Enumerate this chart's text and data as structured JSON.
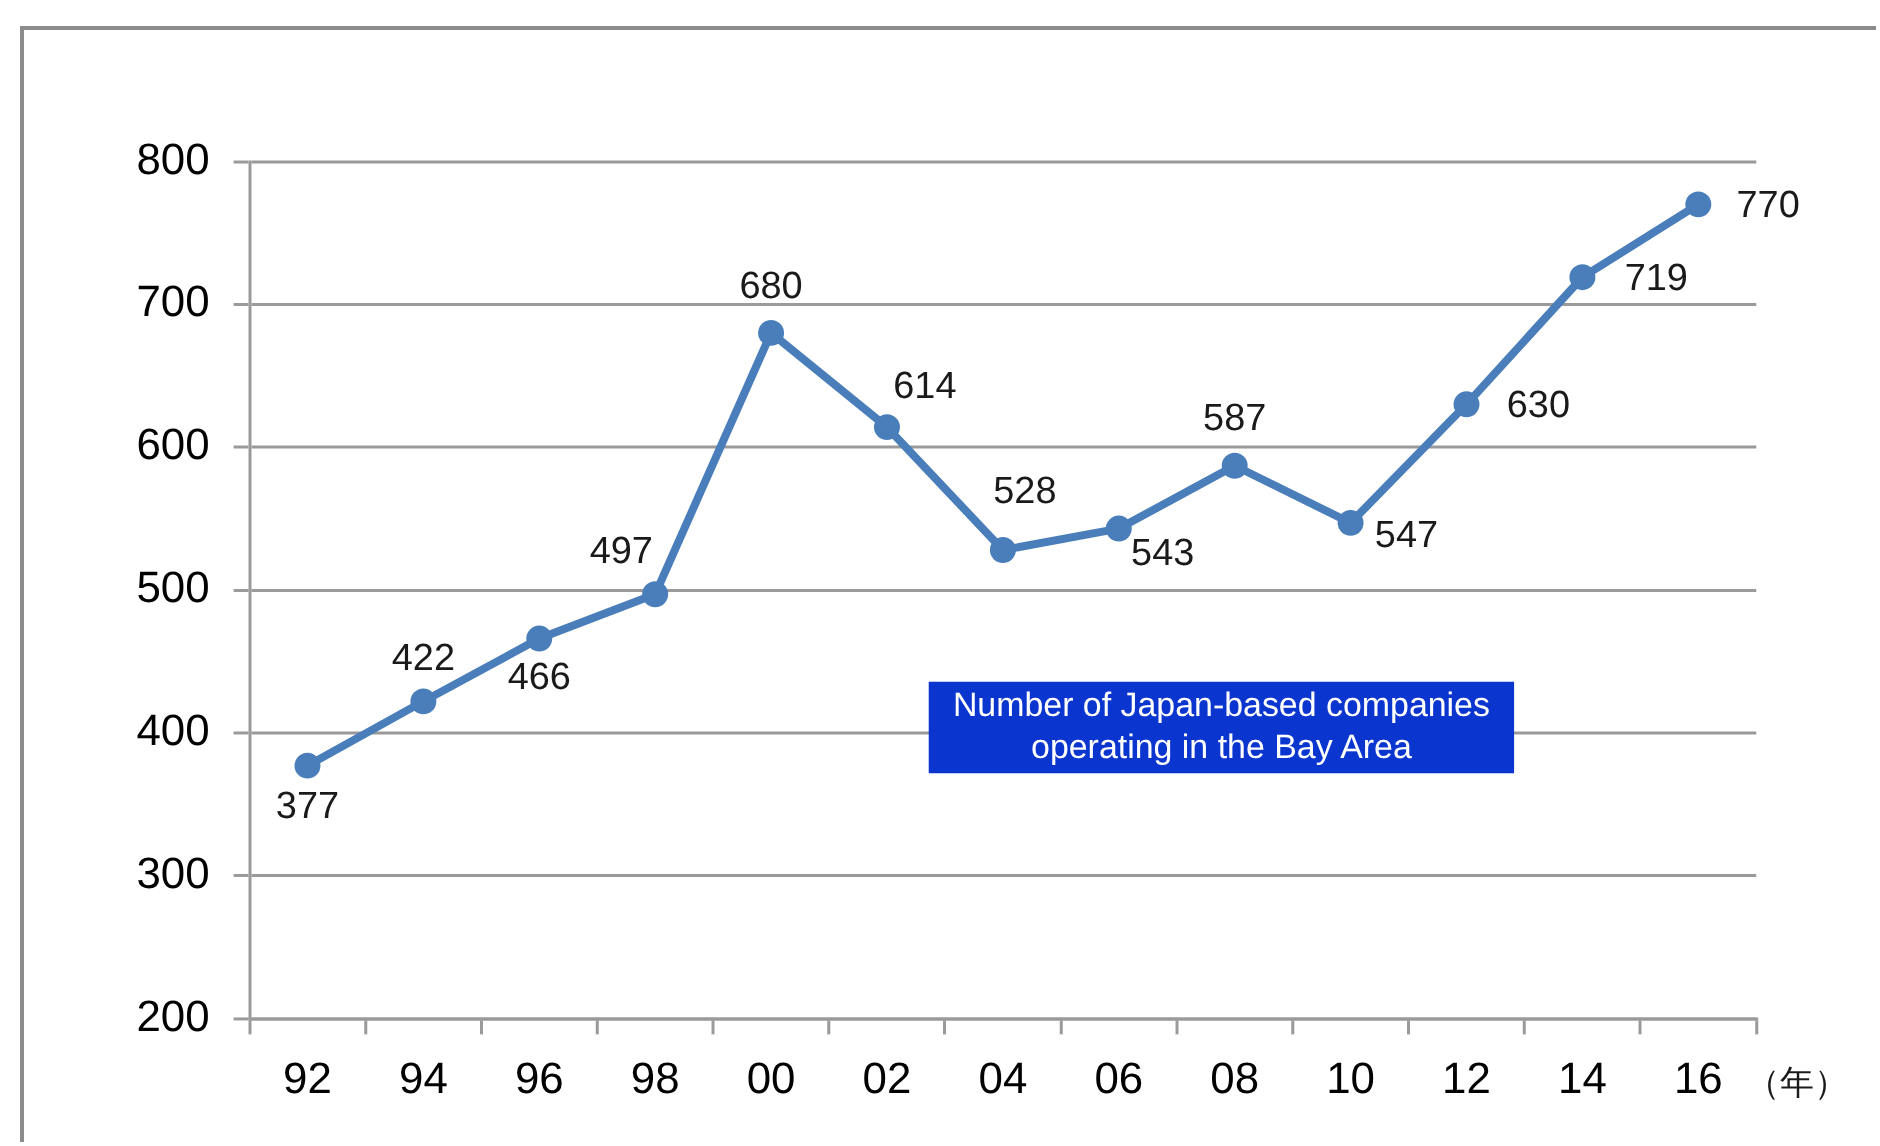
{
  "chart_data": {
    "type": "line",
    "xlabel": "（年）",
    "categories": [
      "92",
      "94",
      "96",
      "98",
      "00",
      "02",
      "04",
      "06",
      "08",
      "10",
      "12",
      "14",
      "16"
    ],
    "series": [
      {
        "color": "#4a7ebb",
        "values": [
          377,
          422,
          466,
          497,
          680,
          614,
          528,
          543,
          587,
          547,
          630,
          719,
          770
        ]
      }
    ],
    "ylim": [
      200,
      800
    ],
    "yticks": [
      200,
      300,
      400,
      500,
      600,
      700,
      800
    ],
    "grid": "y",
    "marker": "circle",
    "line_style": "solid",
    "legend": false,
    "data_labels": true,
    "annotations": [
      "Number of Japan-based companies operating in the Bay Area"
    ]
  }
}
